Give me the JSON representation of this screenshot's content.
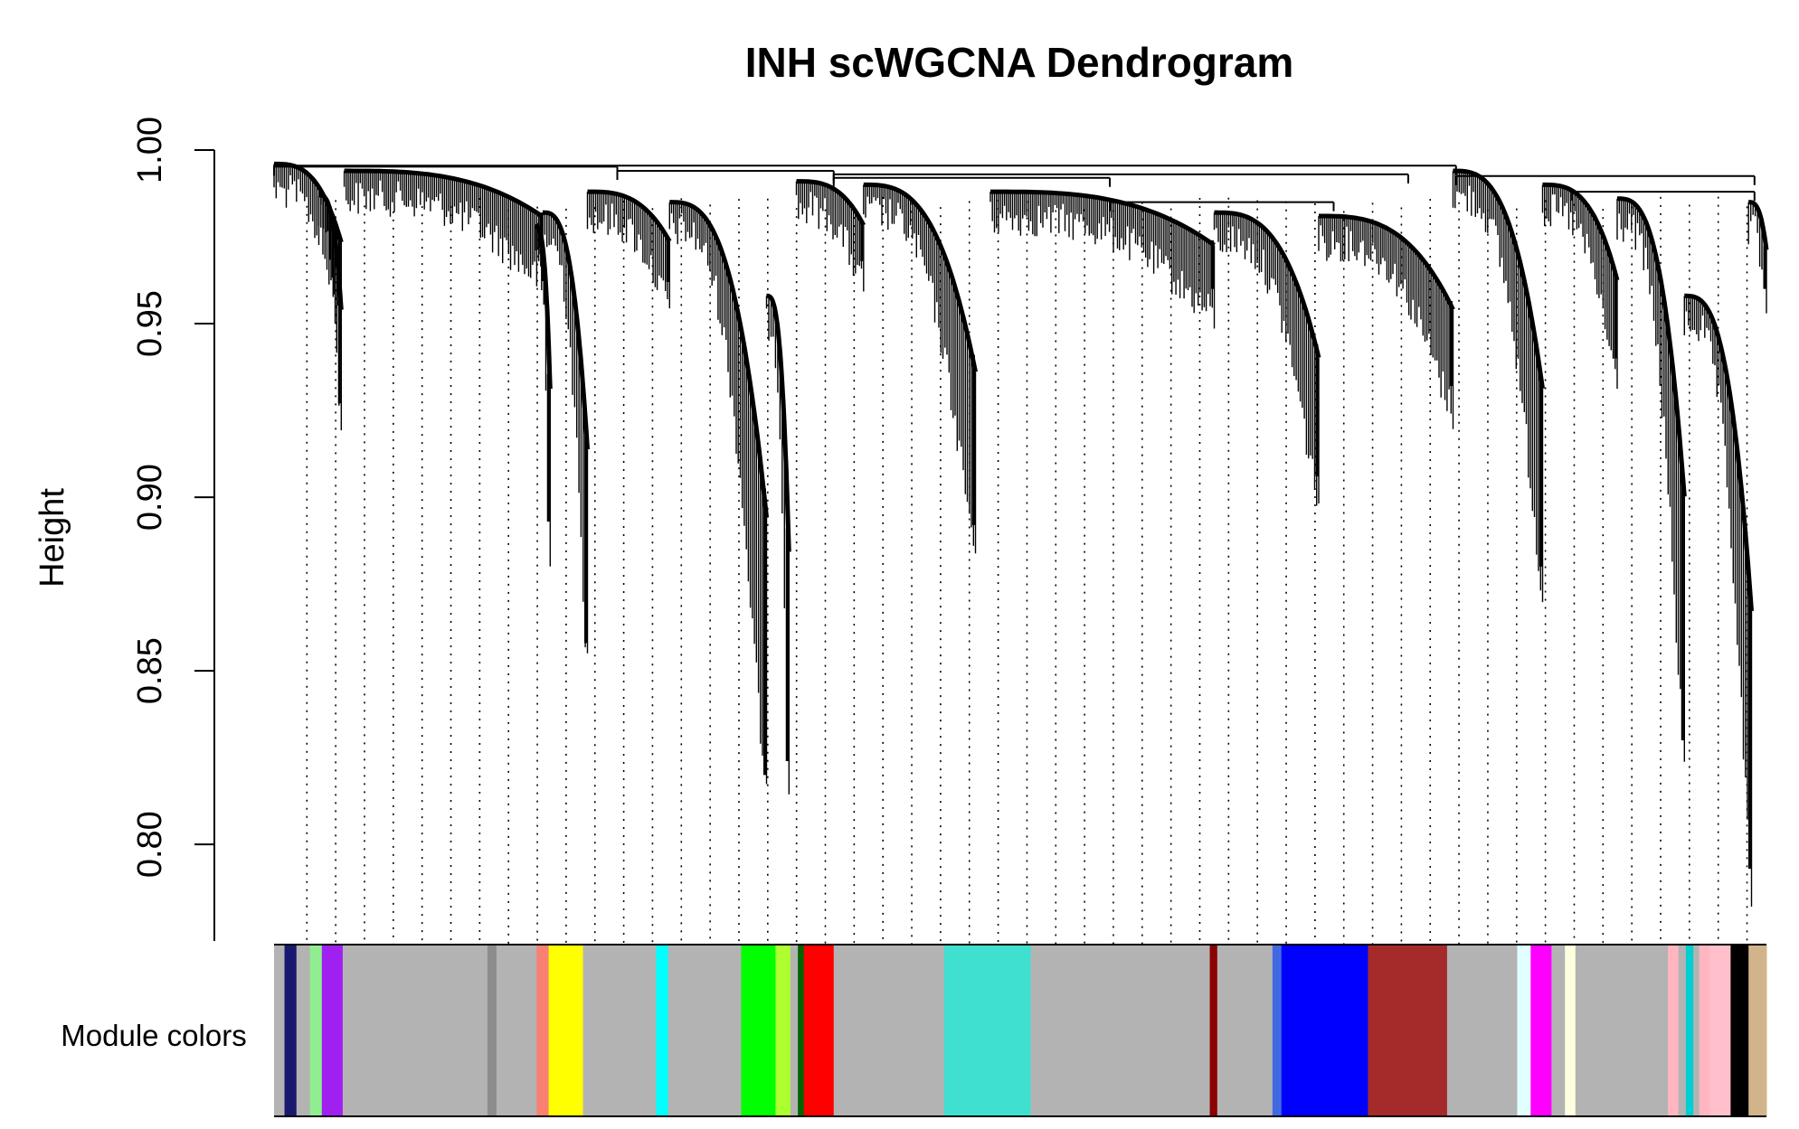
{
  "chart_data": {
    "type": "dendrogram",
    "title": "INH scWGCNA Dendrogram",
    "ylabel": "Height",
    "xlabel": "",
    "ylim": [
      0.78,
      1.0
    ],
    "yticks": [
      0.8,
      0.85,
      0.9,
      0.95,
      1.0
    ],
    "ytick_labels": [
      "0.80",
      "0.85",
      "0.90",
      "0.95",
      "1.00"
    ],
    "colorbar_label": "Module colors",
    "grid": "dotted vertical guide lines",
    "root_merges": [
      {
        "from": 0.0,
        "to": 0.792,
        "height": 0.9955
      },
      {
        "from": 0.0,
        "to": 0.23,
        "height": 0.9952
      },
      {
        "from": 0.23,
        "to": 0.375,
        "height": 0.994
      },
      {
        "from": 0.375,
        "to": 0.76,
        "height": 0.993
      },
      {
        "from": 0.792,
        "to": 0.992,
        "height": 0.9925
      },
      {
        "from": 0.375,
        "to": 0.56,
        "height": 0.992
      },
      {
        "from": 0.56,
        "to": 0.71,
        "height": 0.985
      },
      {
        "from": 0.87,
        "to": 0.992,
        "height": 0.988
      }
    ],
    "clusters": [
      {
        "start": 0.0,
        "end": 0.045,
        "top": 0.996,
        "min": 0.955
      },
      {
        "start": 0.03,
        "end": 0.045,
        "top": 0.987,
        "min": 0.927
      },
      {
        "start": 0.047,
        "end": 0.18,
        "top": 0.994,
        "min": 0.97
      },
      {
        "start": 0.18,
        "end": 0.21,
        "top": 0.982,
        "min": 0.858
      },
      {
        "start": 0.175,
        "end": 0.185,
        "top": 0.978,
        "min": 0.893
      },
      {
        "start": 0.21,
        "end": 0.265,
        "top": 0.988,
        "min": 0.962
      },
      {
        "start": 0.265,
        "end": 0.33,
        "top": 0.985,
        "min": 0.82
      },
      {
        "start": 0.33,
        "end": 0.345,
        "top": 0.958,
        "min": 0.824
      },
      {
        "start": 0.35,
        "end": 0.395,
        "top": 0.991,
        "min": 0.968
      },
      {
        "start": 0.395,
        "end": 0.47,
        "top": 0.99,
        "min": 0.892
      },
      {
        "start": 0.48,
        "end": 0.63,
        "top": 0.988,
        "min": 0.96
      },
      {
        "start": 0.63,
        "end": 0.7,
        "top": 0.982,
        "min": 0.906
      },
      {
        "start": 0.7,
        "end": 0.79,
        "top": 0.981,
        "min": 0.932
      },
      {
        "start": 0.79,
        "end": 0.85,
        "top": 0.994,
        "min": 0.88
      },
      {
        "start": 0.85,
        "end": 0.9,
        "top": 0.99,
        "min": 0.94
      },
      {
        "start": 0.9,
        "end": 0.945,
        "top": 0.986,
        "min": 0.83
      },
      {
        "start": 0.945,
        "end": 0.99,
        "top": 0.958,
        "min": 0.793
      },
      {
        "start": 0.988,
        "end": 1.0,
        "top": 0.985,
        "min": 0.96
      }
    ],
    "module_colors": [
      {
        "start": 0.0,
        "end": 0.007,
        "color": "#b3b3b3"
      },
      {
        "start": 0.007,
        "end": 0.015,
        "color": "#191970"
      },
      {
        "start": 0.015,
        "end": 0.024,
        "color": "#b3b3b3"
      },
      {
        "start": 0.024,
        "end": 0.032,
        "color": "#90ee90"
      },
      {
        "start": 0.032,
        "end": 0.046,
        "color": "#a020f0"
      },
      {
        "start": 0.046,
        "end": 0.143,
        "color": "#b3b3b3"
      },
      {
        "start": 0.143,
        "end": 0.149,
        "color": "#8c8c8c"
      },
      {
        "start": 0.149,
        "end": 0.176,
        "color": "#b3b3b3"
      },
      {
        "start": 0.176,
        "end": 0.184,
        "color": "#fa8072"
      },
      {
        "start": 0.184,
        "end": 0.207,
        "color": "#ffff00"
      },
      {
        "start": 0.207,
        "end": 0.256,
        "color": "#b3b3b3"
      },
      {
        "start": 0.256,
        "end": 0.264,
        "color": "#00ffff"
      },
      {
        "start": 0.264,
        "end": 0.313,
        "color": "#b3b3b3"
      },
      {
        "start": 0.313,
        "end": 0.336,
        "color": "#00ff00"
      },
      {
        "start": 0.336,
        "end": 0.346,
        "color": "#adff2f"
      },
      {
        "start": 0.346,
        "end": 0.351,
        "color": "#b3b3b3"
      },
      {
        "start": 0.351,
        "end": 0.355,
        "color": "#006400"
      },
      {
        "start": 0.355,
        "end": 0.375,
        "color": "#ff0000"
      },
      {
        "start": 0.375,
        "end": 0.449,
        "color": "#b3b3b3"
      },
      {
        "start": 0.449,
        "end": 0.507,
        "color": "#40e0d0"
      },
      {
        "start": 0.507,
        "end": 0.627,
        "color": "#b3b3b3"
      },
      {
        "start": 0.627,
        "end": 0.632,
        "color": "#8b0000"
      },
      {
        "start": 0.632,
        "end": 0.669,
        "color": "#b3b3b3"
      },
      {
        "start": 0.669,
        "end": 0.675,
        "color": "#4169e1"
      },
      {
        "start": 0.675,
        "end": 0.733,
        "color": "#0000ff"
      },
      {
        "start": 0.733,
        "end": 0.786,
        "color": "#a52a2a"
      },
      {
        "start": 0.786,
        "end": 0.833,
        "color": "#b3b3b3"
      },
      {
        "start": 0.833,
        "end": 0.842,
        "color": "#e0ffff"
      },
      {
        "start": 0.842,
        "end": 0.856,
        "color": "#ff00ff"
      },
      {
        "start": 0.856,
        "end": 0.865,
        "color": "#b3b3b3"
      },
      {
        "start": 0.865,
        "end": 0.872,
        "color": "#ffffe0"
      },
      {
        "start": 0.872,
        "end": 0.934,
        "color": "#b3b3b3"
      },
      {
        "start": 0.934,
        "end": 0.941,
        "color": "#ffb6c1"
      },
      {
        "start": 0.941,
        "end": 0.946,
        "color": "#b3b3b3"
      },
      {
        "start": 0.946,
        "end": 0.951,
        "color": "#00ced1"
      },
      {
        "start": 0.951,
        "end": 0.955,
        "color": "#b3b3b3"
      },
      {
        "start": 0.955,
        "end": 0.962,
        "color": "#ffb6c1"
      },
      {
        "start": 0.962,
        "end": 0.976,
        "color": "#ffc0cb"
      },
      {
        "start": 0.976,
        "end": 0.988,
        "color": "#000000"
      },
      {
        "start": 0.988,
        "end": 1.0,
        "color": "#d2b48c"
      }
    ]
  }
}
